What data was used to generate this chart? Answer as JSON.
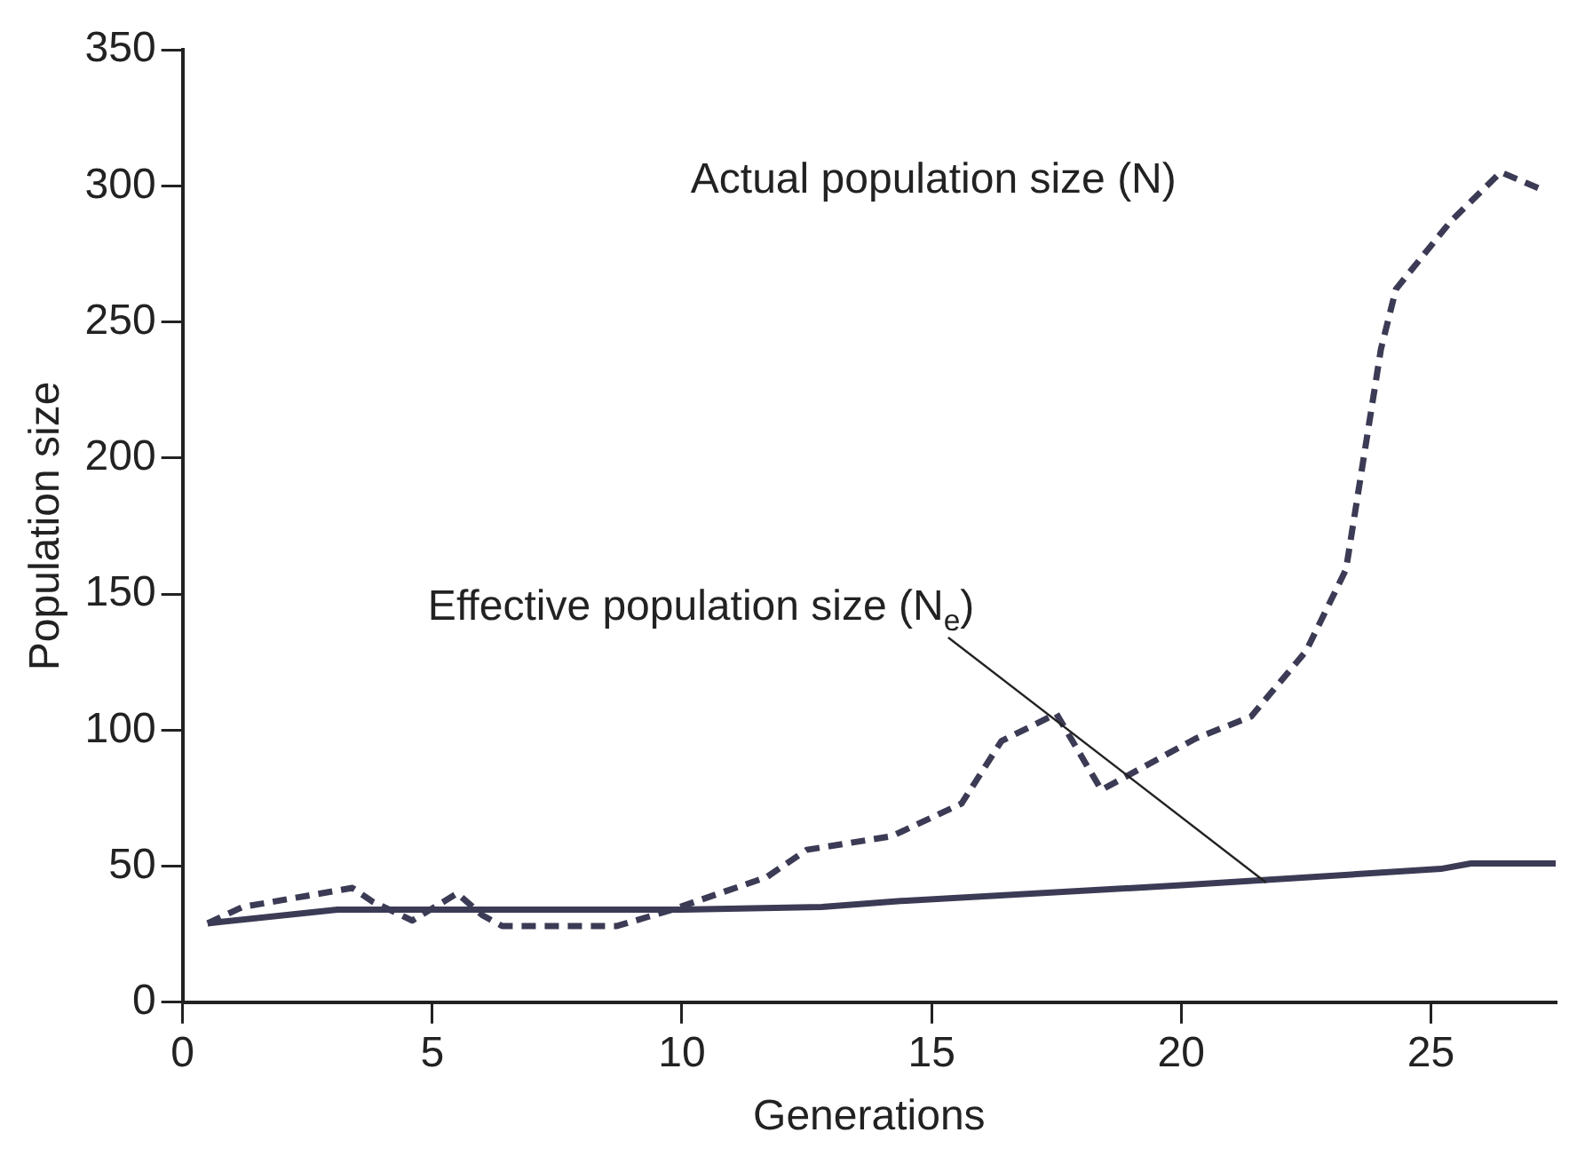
{
  "chart_data": {
    "type": "line",
    "xlabel": "Generations",
    "ylabel": "Population size",
    "xlim": [
      0,
      27.5
    ],
    "xticks": [
      0,
      5,
      10,
      15,
      20,
      25
    ],
    "ylim": [
      0,
      350
    ],
    "yticks": [
      0,
      50,
      100,
      150,
      200,
      250,
      300,
      350
    ],
    "grid": false,
    "legend": false,
    "marker": "none",
    "series": [
      {
        "type": "line",
        "line_style": "dashed",
        "color": "#3c3b55",
        "x": [
          0.5,
          1.2,
          3.4,
          3.8,
          4.6,
          5.5,
          6.0,
          6.4,
          8.7,
          9.8,
          11.7,
          12.5,
          14.2,
          15.6,
          16.4,
          17.5,
          18.4,
          20.3,
          21.4,
          22.5,
          23.3,
          24.0,
          24.3,
          25.4,
          26.4,
          27.3
        ],
        "values": [
          29,
          35,
          42,
          37,
          30,
          40,
          32,
          28,
          28,
          34,
          46,
          56,
          61,
          73,
          96,
          106,
          78,
          97,
          105,
          129,
          159,
          240,
          262,
          287,
          305,
          298
        ]
      },
      {
        "type": "line",
        "line_style": "solid",
        "color": "#3c3b55",
        "x": [
          0.5,
          3.1,
          10.0,
          12.8,
          14.2,
          20.0,
          25.2,
          25.8,
          27.5
        ],
        "values": [
          29,
          34,
          34,
          35,
          37,
          43,
          49,
          51,
          51
        ]
      }
    ],
    "annotations": [
      "Actual population size (N)",
      {
        "text": "Effective population size (N$_{e}$)",
        "x": 21.7,
        "y": 44
      }
    ]
  }
}
